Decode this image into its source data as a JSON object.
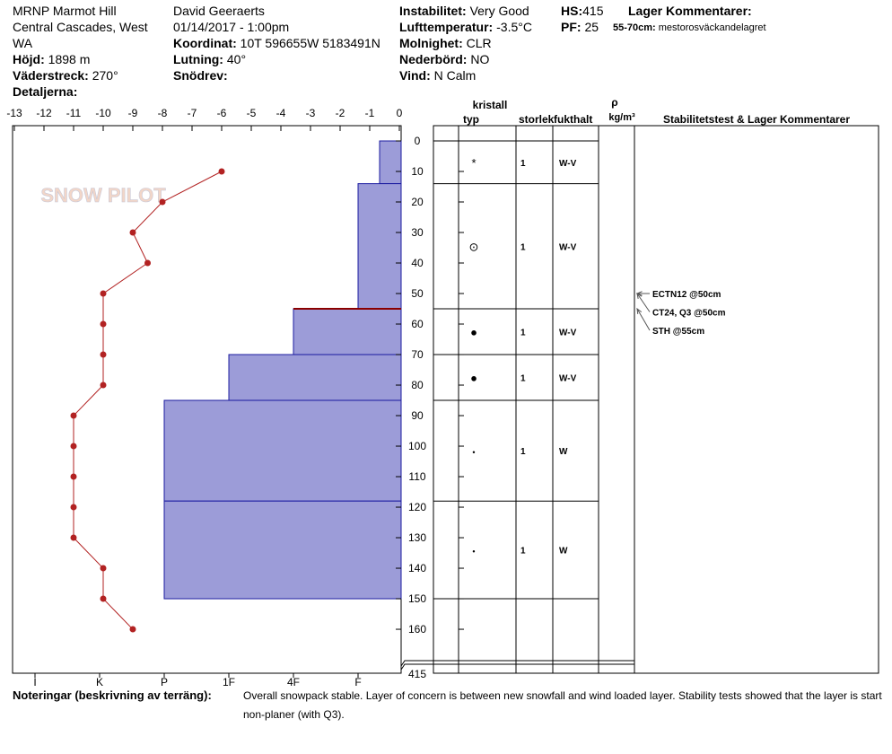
{
  "header": {
    "location": [
      "MRNP Marmot Hill",
      "Central Cascades, West",
      "WA"
    ],
    "elevation": {
      "label": "Höjd:",
      "value": "1898 m"
    },
    "aspect": {
      "label": "Väderstreck:",
      "value": "270°"
    },
    "details": {
      "label": "Detaljerna:"
    },
    "observer": "David Geeraerts",
    "datetime": "01/14/2017 - 1:00pm",
    "coordinates": {
      "label": "Koordinat:",
      "value": "10T 596655W 5183491N"
    },
    "slope": {
      "label": "Lutning:",
      "value": "40°"
    },
    "wind_loading": {
      "label": "Snödrev:"
    },
    "stability": {
      "label": "Instabilitet:",
      "value": "Very Good"
    },
    "air_temp": {
      "label": "Lufttemperatur:",
      "value": "-3.5°C"
    },
    "sky": {
      "label": "Molnighet:",
      "value": "CLR"
    },
    "precip": {
      "label": "Nederbörd:",
      "value": "NO"
    },
    "wind": {
      "label": "Vind:",
      "value": "N Calm"
    },
    "hs": {
      "label": "HS:",
      "value": "415"
    },
    "pf": {
      "label": "PF:",
      "value": "25"
    },
    "layer_comments": {
      "title": "Lager Kommentarer:",
      "range": "55-70cm:",
      "text": "mestorosväckandelagret"
    }
  },
  "chart_data": {
    "type": "snow-profile",
    "watermark": "SNOW PILOT",
    "xlim": [
      -13,
      0
    ],
    "xticks": [
      -13,
      -12,
      -11,
      -10,
      -9,
      -8,
      -7,
      -6,
      -5,
      -4,
      -3,
      -2,
      -1,
      0
    ],
    "ylim": [
      -5,
      174.4
    ],
    "yticks": [
      0,
      10,
      20,
      30,
      40,
      50,
      60,
      70,
      80,
      90,
      100,
      110,
      120,
      130,
      140,
      150,
      160
    ],
    "y_break_label": "415",
    "hardness_ticks": [
      {
        "value": 6,
        "label": "I"
      },
      {
        "value": 5,
        "label": "K"
      },
      {
        "value": 4,
        "label": "P"
      },
      {
        "value": 3,
        "label": "1F"
      },
      {
        "value": 2,
        "label": "4F"
      },
      {
        "value": 1,
        "label": "F"
      }
    ],
    "temperature": {
      "color": "#b22222",
      "depths": [
        10,
        20,
        30,
        40,
        50,
        60,
        70,
        80,
        90,
        100,
        110,
        120,
        130,
        140,
        150,
        160
      ],
      "values": [
        -6,
        -8,
        -9,
        -8.5,
        -10,
        -10,
        -10,
        -10,
        -11,
        -11,
        -11,
        -11,
        -11,
        -10,
        -10,
        -9
      ]
    },
    "layer_color": "#9c9cd8",
    "layer_edge": "#1c1ca0",
    "highlight_color": "#8b0000",
    "layers": [
      {
        "top": 0,
        "bottom": 14,
        "hardness": 0.5
      },
      {
        "top": 14,
        "bottom": 55,
        "hardness": 1
      },
      {
        "top": 55,
        "bottom": 70,
        "hardness": 2,
        "highlight": true
      },
      {
        "top": 70,
        "bottom": 85,
        "hardness": 3
      },
      {
        "top": 85,
        "bottom": 118,
        "hardness": 4
      },
      {
        "top": 118,
        "bottom": 150,
        "hardness": 4
      }
    ]
  },
  "table": {
    "headers": {
      "crystal": "kristall",
      "type": "typ",
      "size": "storlek",
      "moisture": "fukthalt",
      "rho": "ρ",
      "density_unit": "kg/m³",
      "tests": "Stabilitetstest & Lager Kommentarer"
    },
    "rows": [
      {
        "symbol": "*",
        "size": 1,
        "moisture": "W-V"
      },
      {
        "symbol": "⊙",
        "size": 1,
        "moisture": "W-V"
      },
      {
        "symbol": "●",
        "size": 1,
        "moisture": "W-V"
      },
      {
        "symbol": "●",
        "size": 1,
        "moisture": "W-V"
      },
      {
        "symbol": "•",
        "size": 1,
        "moisture": "W"
      },
      {
        "symbol": "•",
        "size": 1,
        "moisture": "W"
      }
    ]
  },
  "tests": [
    {
      "label": "ECTN12 @50cm",
      "depth": 50
    },
    {
      "label": "CT24, Q3 @50cm",
      "depth": 50
    },
    {
      "label": "STH @55cm",
      "depth": 55
    }
  ],
  "notes": {
    "label": "Noteringar (beskrivning av terräng):",
    "text": "Overall snowpack stable. Layer of concern is between new snowfall and wind loaded layer. Stability tests showed that the layer is start non-planer (with Q3)."
  }
}
